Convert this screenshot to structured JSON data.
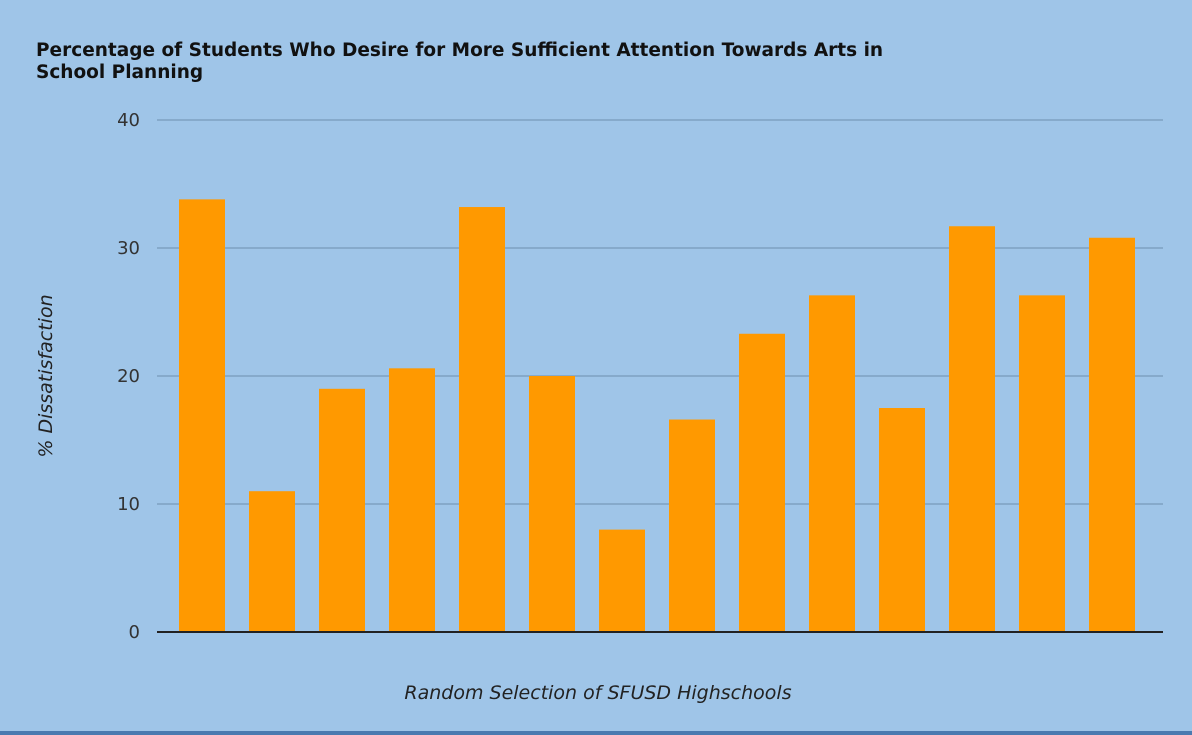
{
  "chart_data": {
    "type": "bar",
    "title_lines": [
      "Percentage of Students Who Desire for More Sufficient Attention Towards Arts in",
      "School Planning"
    ],
    "xlabel": "Random Selection of SFUSD Highschools",
    "ylabel": "% Dissatisfaction",
    "ylim": [
      0,
      40
    ],
    "yticks": [
      0,
      10,
      20,
      30,
      40
    ],
    "values": [
      33.8,
      11.0,
      19.0,
      20.6,
      33.2,
      20.0,
      8.0,
      16.6,
      23.3,
      26.3,
      17.5,
      31.7,
      26.3,
      30.8
    ],
    "bar_color": "#ff9900",
    "grid": true
  },
  "colors": {
    "background": "#9fc5e8",
    "bar": "#ff9900"
  }
}
